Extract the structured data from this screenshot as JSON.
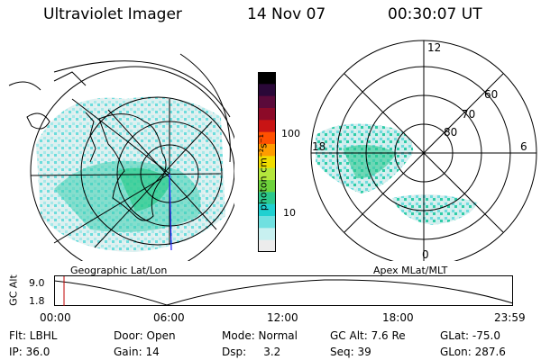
{
  "header": {
    "instrument": "Ultraviolet Imager",
    "date": "14 Nov 07",
    "time": "00:30:07 UT"
  },
  "left_panel": {
    "label": "Geographic Lat/Lon"
  },
  "right_panel": {
    "label": "Apex MLat/MLT",
    "mlt_labels": [
      "12",
      "18",
      "6",
      "0"
    ],
    "lat_labels": [
      "60",
      "70",
      "80"
    ]
  },
  "colorbar": {
    "unit_label": "photon cm⁻²s⁻¹",
    "ticks": [
      "100",
      "10"
    ],
    "colors": [
      "#000000",
      "#2a0838",
      "#5a0a3a",
      "#8c0a28",
      "#c81414",
      "#ff5000",
      "#ff9c00",
      "#f0dc00",
      "#b4e63c",
      "#6ed23c",
      "#2cc88c",
      "#20d0d0",
      "#70e0e0",
      "#c8f0f0",
      "#ececec"
    ]
  },
  "altitude_plot": {
    "ylabel": "GC Alt",
    "y_ticks": [
      "9.0",
      "1.8"
    ],
    "x_ticks": [
      "00:00",
      "06:00",
      "12:00",
      "18:00",
      "23:59"
    ],
    "current_marker_time": "00:30"
  },
  "footer": {
    "col1": [
      "Flt: LBHL",
      "IP: 36.0"
    ],
    "col2": [
      "Door: Open",
      "Gain: 14"
    ],
    "col3": [
      "Mode: Normal",
      "Dsp:     3.2"
    ],
    "col4": [
      "GC Alt: 7.6 Re",
      "Seq: 39"
    ],
    "col5": [
      "GLat: -75.0",
      "GLon: 287.6"
    ]
  },
  "colors": {
    "aurora_core": "#20c8a0",
    "aurora_mid": "#60dcdc",
    "aurora_edge": "#d0eeee",
    "marker": "#c00000",
    "meridian": "#2020ff"
  }
}
